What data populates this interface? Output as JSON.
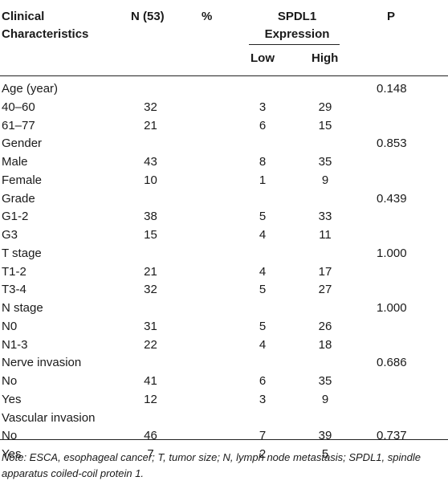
{
  "table": {
    "headers": {
      "clinical": "Clinical\nCharacteristics",
      "n": "N (53)",
      "percent": "%",
      "spdl1": "SPDL1\nExpression",
      "p": "P",
      "low": "Low",
      "high": "High"
    },
    "rows": [
      {
        "char": "Age (year)",
        "n": "",
        "low": "",
        "high": "",
        "p": "0.148"
      },
      {
        "char": "40–60",
        "n": "32",
        "low": "3",
        "high": "29",
        "p": ""
      },
      {
        "char": "61–77",
        "n": "21",
        "low": "6",
        "high": "15",
        "p": ""
      },
      {
        "char": "Gender",
        "n": "",
        "low": "",
        "high": "",
        "p": "0.853"
      },
      {
        "char": "Male",
        "n": "43",
        "low": "8",
        "high": "35",
        "p": ""
      },
      {
        "char": "Female",
        "n": "10",
        "low": "1",
        "high": "9",
        "p": ""
      },
      {
        "char": "Grade",
        "n": "",
        "low": "",
        "high": "",
        "p": "0.439"
      },
      {
        "char": "G1-2",
        "n": "38",
        "low": "5",
        "high": "33",
        "p": ""
      },
      {
        "char": "G3",
        "n": "15",
        "low": "4",
        "high": "11",
        "p": ""
      },
      {
        "char": "T stage",
        "n": "",
        "low": "",
        "high": "",
        "p": "1.000"
      },
      {
        "char": "T1-2",
        "n": "21",
        "low": "4",
        "high": "17",
        "p": ""
      },
      {
        "char": "T3-4",
        "n": "32",
        "low": "5",
        "high": "27",
        "p": ""
      },
      {
        "char": "N stage",
        "n": "",
        "low": "",
        "high": "",
        "p": "1.000"
      },
      {
        "char": "N0",
        "n": "31",
        "low": "5",
        "high": "26",
        "p": ""
      },
      {
        "char": "N1-3",
        "n": "22",
        "low": "4",
        "high": "18",
        "p": ""
      },
      {
        "char": "Nerve invasion",
        "n": "",
        "low": "",
        "high": "",
        "p": "0.686"
      },
      {
        "char": "No",
        "n": "41",
        "low": "6",
        "high": "35",
        "p": ""
      },
      {
        "char": "Yes",
        "n": "12",
        "low": "3",
        "high": "9",
        "p": ""
      },
      {
        "char": "Vascular invasion",
        "n": "",
        "low": "",
        "high": "",
        "p": ""
      },
      {
        "char": "No",
        "n": "46",
        "low": "7",
        "high": "39",
        "p": "0.737"
      },
      {
        "char": "Yes",
        "n": "7",
        "low": "2",
        "high": "5",
        "p": ""
      }
    ]
  },
  "note": "Note: ESCA, esophageal cancer; T, tumor size; N, lymph node metastasis; SPDL1, spindle apparatus coiled-coil protein 1."
}
